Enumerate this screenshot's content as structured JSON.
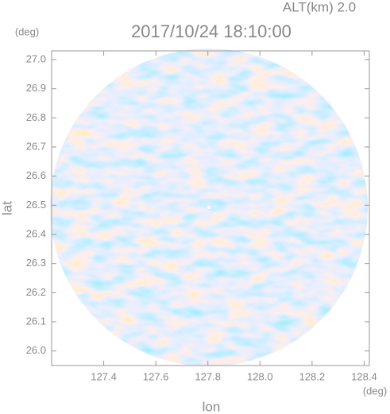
{
  "chart_data": {
    "type": "radar-scan",
    "title": "2017/10/24 18:10:00",
    "subtitle": "ALT(km) 2.0",
    "x_label": "lon",
    "y_label": "lat",
    "x_unit": "(deg)",
    "y_unit": "(deg)",
    "xlim": [
      127.2,
      128.42
    ],
    "ylim": [
      25.95,
      27.03
    ],
    "xticks": [
      127.4,
      127.6,
      127.8,
      {
        "value": 128,
        "label": "128.0"
      },
      128.2,
      128.4
    ],
    "yticks": [
      {
        "value": 26,
        "label": "26.0"
      },
      26.1,
      26.2,
      26.3,
      26.4,
      26.5,
      26.6,
      26.7,
      26.8,
      26.9,
      {
        "value": 27,
        "label": "27.0"
      }
    ]
  }
}
